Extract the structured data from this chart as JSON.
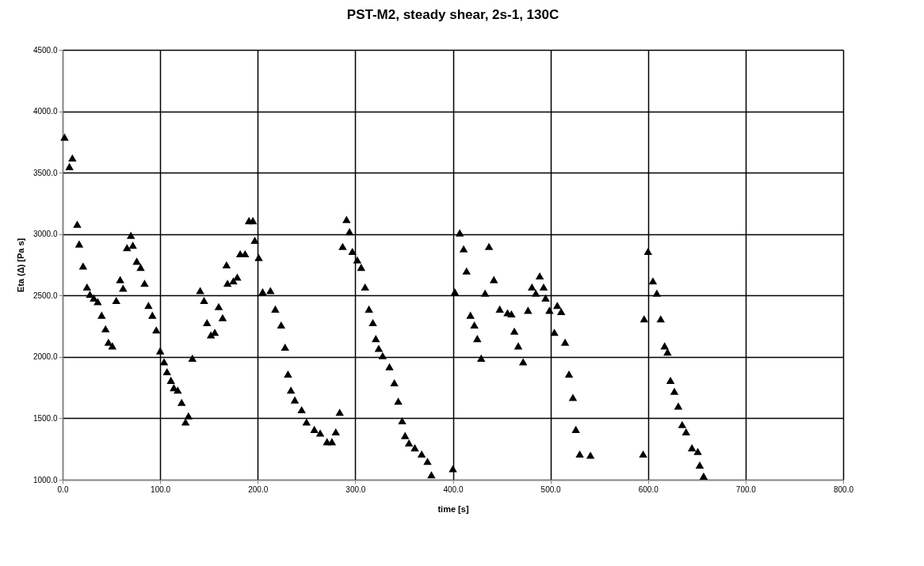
{
  "chart_data": {
    "type": "scatter",
    "title": "PST-M2,  steady shear, 2s-1, 130C",
    "xlabel": "time [s]",
    "ylabel": "Eta (Δ) [Pa s]",
    "xlim": [
      0,
      800
    ],
    "ylim": [
      1000,
      4500
    ],
    "xticks": [
      {
        "value": 0,
        "label": "0.0"
      },
      {
        "value": 100,
        "label": "100.0"
      },
      {
        "value": 200,
        "label": "200.0"
      },
      {
        "value": 300,
        "label": "300.0"
      },
      {
        "value": 400,
        "label": "400.0"
      },
      {
        "value": 500,
        "label": "500.0"
      },
      {
        "value": 600,
        "label": "600.0"
      },
      {
        "value": 700,
        "label": "700.0"
      },
      {
        "value": 800,
        "label": "800.0"
      }
    ],
    "yticks": [
      {
        "value": 1000,
        "label": "1000.0"
      },
      {
        "value": 1500,
        "label": "1500.0"
      },
      {
        "value": 2000,
        "label": "2000.0"
      },
      {
        "value": 2500,
        "label": "2500.0"
      },
      {
        "value": 3000,
        "label": "3000.0"
      },
      {
        "value": 3500,
        "label": "3500.0"
      },
      {
        "value": 4000,
        "label": "4000.0"
      },
      {
        "value": 4500,
        "label": "4500.0"
      }
    ],
    "grid": true,
    "marker": "triangle",
    "legend": false,
    "series": [
      {
        "color": "#000000",
        "x": [
          2,
          10,
          7,
          15,
          17,
          21,
          25,
          28,
          32,
          36,
          40,
          44,
          47,
          51,
          55,
          59,
          62,
          66,
          70,
          72,
          76,
          80,
          84,
          88,
          92,
          96,
          100,
          104,
          107,
          111,
          114,
          118,
          122,
          129,
          126,
          133,
          141,
          145,
          148,
          152,
          156,
          160,
          164,
          169,
          175,
          179,
          168,
          182,
          187,
          191,
          195,
          197,
          201,
          205,
          213,
          218,
          224,
          228,
          231,
          234,
          238,
          245,
          250,
          258,
          264,
          271,
          276,
          280,
          284,
          287,
          291,
          294,
          297,
          302,
          306,
          310,
          314,
          318,
          321,
          324,
          328,
          335,
          340,
          344,
          348,
          351,
          355,
          361,
          368,
          374,
          378,
          400,
          402,
          407,
          411,
          414,
          418,
          422,
          425,
          429,
          433,
          437,
          442,
          448,
          456,
          460,
          463,
          467,
          472,
          477,
          481,
          485,
          489,
          493,
          495,
          499,
          504,
          507,
          511,
          515,
          519,
          523,
          526,
          530,
          541,
          595,
          596,
          600,
          605,
          609,
          613,
          617,
          620,
          623,
          627,
          631,
          635,
          639,
          645,
          651,
          653,
          657
        ],
        "values": [
          3790,
          3620,
          3550,
          3080,
          2920,
          2740,
          2570,
          2510,
          2480,
          2450,
          2340,
          2230,
          2120,
          2090,
          2460,
          2630,
          2560,
          2890,
          2990,
          2910,
          2780,
          2730,
          2600,
          2420,
          2340,
          2220,
          2050,
          1960,
          1880,
          1810,
          1750,
          1730,
          1630,
          1520,
          1470,
          1990,
          2540,
          2460,
          2280,
          2180,
          2200,
          2410,
          2320,
          2600,
          2620,
          2650,
          2750,
          2840,
          2840,
          3110,
          3110,
          2950,
          2810,
          2530,
          2540,
          2390,
          2260,
          2080,
          1860,
          1730,
          1650,
          1570,
          1470,
          1410,
          1380,
          1310,
          1310,
          1390,
          1550,
          2900,
          3120,
          3020,
          2860,
          2790,
          2730,
          2570,
          2390,
          2280,
          2150,
          2070,
          2010,
          1920,
          1790,
          1640,
          1480,
          1360,
          1300,
          1260,
          1210,
          1150,
          1040,
          1090,
          2530,
          3010,
          2880,
          2700,
          2340,
          2260,
          2150,
          1990,
          2520,
          2900,
          2630,
          2390,
          2360,
          2350,
          2210,
          2090,
          1960,
          2380,
          2570,
          2520,
          2660,
          2570,
          2480,
          2380,
          2200,
          2420,
          2370,
          2120,
          1860,
          1670,
          1410,
          1210,
          1200,
          1210,
          2310,
          2860,
          2620,
          2520,
          2310,
          2090,
          2040,
          1810,
          1720,
          1600,
          1450,
          1390,
          1260,
          1230,
          1120,
          1030
        ]
      }
    ]
  }
}
